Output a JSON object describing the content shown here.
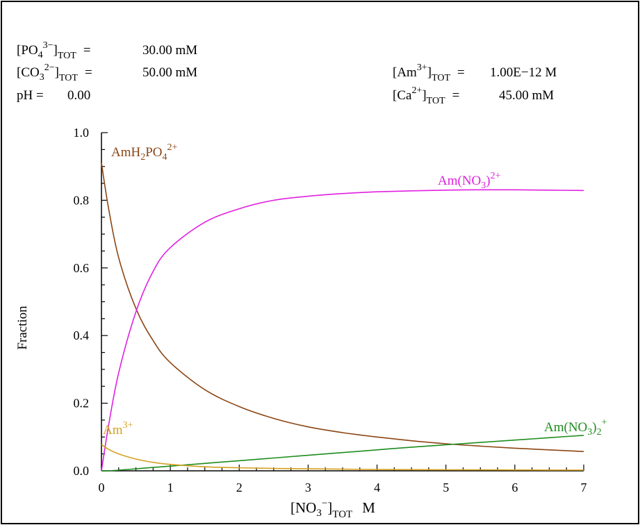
{
  "conditions": {
    "po4": {
      "prefix": "[PO",
      "sub1": "4",
      "sup": "3−",
      "close": "]",
      "sub2": "TOT",
      "eq": "=",
      "value": "30.00 mM"
    },
    "co3": {
      "prefix": "[CO",
      "sub1": "3",
      "sup": "2−",
      "close": "]",
      "sub2": "TOT",
      "eq": "=",
      "value": "50.00 mM"
    },
    "ph": {
      "label": "pH =",
      "value": "0.00"
    },
    "am": {
      "prefix": "[Am",
      "sup": "3+",
      "close": "]",
      "sub": "TOT",
      "eq": "=",
      "value": "1.00E−12 M"
    },
    "ca": {
      "prefix": "[Ca",
      "sup": "2+",
      "close": "]",
      "sub": "TOT",
      "eq": "=",
      "value": "45.00 mM"
    }
  },
  "chart_data": {
    "type": "line",
    "title": "",
    "ylabel": "Fraction",
    "xlabel": {
      "prefix": "[NO",
      "sub": "3",
      "sup": "−",
      "close": "]",
      "sub2": "TOT",
      "unit": "M"
    },
    "xlim": [
      0,
      7
    ],
    "ylim": [
      0,
      1
    ],
    "xticks": [
      "0",
      "1",
      "2",
      "3",
      "4",
      "5",
      "6",
      "7"
    ],
    "yticks": [
      "0.0",
      "0.2",
      "0.4",
      "0.6",
      "0.8",
      "1.0"
    ],
    "grid": false,
    "x": [
      0,
      0.1,
      0.25,
      0.5,
      0.75,
      1,
      1.5,
      2,
      2.5,
      3,
      3.5,
      4,
      4.5,
      5,
      5.5,
      6,
      6.5,
      7
    ],
    "series": [
      {
        "key": "amh2po4",
        "label": {
          "base": "AmH",
          "sub1": "2",
          "mid": "PO",
          "sub2": "4",
          "sup": "2+"
        },
        "color": "#8B4513",
        "values": [
          0.91,
          0.78,
          0.63,
          0.48,
          0.385,
          0.32,
          0.24,
          0.19,
          0.155,
          0.13,
          0.113,
          0.1,
          0.089,
          0.08,
          0.073,
          0.067,
          0.062,
          0.057
        ]
      },
      {
        "key": "amno3",
        "label": {
          "base": "Am(NO",
          "sub1": "3",
          "close": ")",
          "sup": "2+"
        },
        "color": "#E020E0",
        "values": [
          0.0,
          0.13,
          0.29,
          0.47,
          0.59,
          0.66,
          0.735,
          0.775,
          0.8,
          0.812,
          0.82,
          0.825,
          0.828,
          0.83,
          0.831,
          0.831,
          0.83,
          0.829
        ]
      },
      {
        "key": "amno3_2",
        "label": {
          "base": "Am(NO",
          "sub1": "3",
          "close": ")",
          "sub2": "2",
          "sup": "+"
        },
        "color": "#1E8C1E",
        "values": [
          0.0,
          0.0,
          0.002,
          0.006,
          0.01,
          0.014,
          0.022,
          0.03,
          0.038,
          0.046,
          0.054,
          0.062,
          0.07,
          0.077,
          0.084,
          0.091,
          0.098,
          0.105
        ]
      },
      {
        "key": "am3",
        "label": {
          "base": "Am",
          "sup": "3+"
        },
        "color": "#D4A020",
        "values": [
          0.078,
          0.064,
          0.05,
          0.035,
          0.025,
          0.019,
          0.012,
          0.009,
          0.007,
          0.006,
          0.005,
          0.004,
          0.0035,
          0.003,
          0.0028,
          0.0025,
          0.0023,
          0.002
        ]
      }
    ]
  }
}
